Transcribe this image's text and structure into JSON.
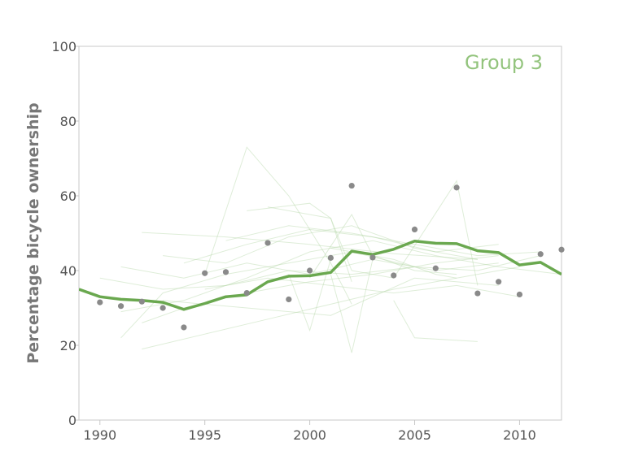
{
  "colors": {
    "trend": "#6aa84f",
    "annotation": "#93c47d",
    "background_lines": "#b6d7a8",
    "points": "#8a8a8a",
    "axis": "#c8c8c8",
    "tick_text": "#555555",
    "ylabel_text": "#777777"
  },
  "chart_data": {
    "type": "line",
    "title": "",
    "xlabel": "",
    "ylabel": "Percentage bicycle ownership",
    "annotation": "Group 3",
    "xlim": [
      1989,
      2012
    ],
    "ylim": [
      0,
      100
    ],
    "grid": false,
    "x_ticks": [
      1990,
      1995,
      2000,
      2005,
      2010
    ],
    "y_ticks": [
      0,
      20,
      40,
      60,
      80,
      100
    ],
    "series": [
      {
        "style": "line",
        "x": [
          1989,
          1990,
          1991,
          1992,
          1993,
          1994,
          1995,
          1996,
          1997,
          1998,
          1999,
          2000,
          2001,
          2002,
          2003,
          2004,
          2005,
          2006,
          2007,
          2008,
          2009,
          2010,
          2011,
          2012
        ],
        "y": [
          35,
          33,
          32.3,
          32,
          31.5,
          29.6,
          31.2,
          33,
          33.5,
          37,
          38.5,
          38.6,
          39.5,
          45.2,
          44.3,
          45.7,
          47.9,
          47.3,
          47.2,
          45.3,
          44.8,
          41.5,
          42.2,
          39
        ]
      },
      {
        "style": "points",
        "x": [
          1990,
          1991,
          1992,
          1993,
          1994,
          1995,
          1996,
          1997,
          1998,
          1999,
          2000,
          2001,
          2002,
          2003,
          2004,
          2005,
          2006,
          2007,
          2008,
          2009,
          2010,
          2011,
          2012
        ],
        "y": [
          31.5,
          30.5,
          31.7,
          30,
          24.8,
          39.3,
          39.6,
          34,
          47.4,
          32.3,
          40,
          43.4,
          62.7,
          43.5,
          38.7,
          51,
          40.6,
          62.2,
          33.9,
          37,
          33.6,
          44.4,
          45.6
        ]
      }
    ],
    "background_lines": [
      {
        "x": [
          1992,
          1996,
          2000,
          2004,
          2008
        ],
        "y": [
          50.2,
          49,
          47,
          44.5,
          43
        ]
      },
      {
        "x": [
          1991,
          1994,
          1997,
          2000,
          2003,
          2006,
          2009
        ],
        "y": [
          41,
          38,
          42,
          39,
          43,
          40,
          42
        ]
      },
      {
        "x": [
          1995,
          1997,
          1999,
          2001,
          2002
        ],
        "y": [
          39,
          73,
          60,
          42,
          31
        ]
      },
      {
        "x": [
          1993,
          1996,
          1999,
          2002,
          2005,
          2008
        ],
        "y": [
          44,
          42,
          49,
          52,
          46,
          43
        ]
      },
      {
        "x": [
          1992,
          1995,
          1998,
          2001,
          2004,
          2007,
          2010
        ],
        "y": [
          19,
          23,
          27,
          31,
          35,
          38,
          41
        ]
      },
      {
        "x": [
          1990,
          1993,
          1996,
          1999,
          2002,
          2005,
          2008,
          2011
        ],
        "y": [
          38,
          35,
          36,
          40,
          39,
          41,
          40,
          44
        ]
      },
      {
        "x": [
          1992,
          1994,
          1997,
          2000,
          2003,
          2006,
          2009
        ],
        "y": [
          26,
          30,
          34,
          37,
          39,
          42,
          44
        ]
      },
      {
        "x": [
          1997,
          2000,
          2001,
          2002
        ],
        "y": [
          56,
          58,
          54,
          40
        ]
      },
      {
        "x": [
          1998,
          2001,
          2002
        ],
        "y": [
          57,
          54,
          37
        ]
      },
      {
        "x": [
          2001,
          2002,
          2003,
          2004,
          2005,
          2006,
          2007
        ],
        "y": [
          46,
          45,
          44,
          43,
          41,
          39,
          38
        ]
      },
      {
        "x": [
          2004,
          2005,
          2008
        ],
        "y": [
          32,
          22,
          21
        ]
      },
      {
        "x": [
          1999,
          2000,
          2001
        ],
        "y": [
          39,
          24,
          43
        ]
      },
      {
        "x": [
          2002,
          2004,
          2007,
          2008
        ],
        "y": [
          40,
          38,
          64,
          36
        ]
      },
      {
        "x": [
          1993,
          1997,
          2001,
          2005,
          2009
        ],
        "y": [
          32,
          30,
          28,
          38,
          36
        ]
      },
      {
        "x": [
          1995,
          1998,
          2001,
          2004,
          2007,
          2010
        ],
        "y": [
          35,
          38,
          36,
          34,
          36,
          33
        ]
      },
      {
        "x": [
          1991,
          1994,
          1997,
          2000,
          2003,
          2006,
          2009,
          2012
        ],
        "y": [
          29,
          32,
          38,
          45,
          48,
          44,
          41,
          39
        ]
      },
      {
        "x": [
          1994,
          1997,
          2000,
          2003,
          2006,
          2009
        ],
        "y": [
          42,
          47,
          51,
          49,
          45,
          47
        ]
      },
      {
        "x": [
          1996,
          1999,
          2002,
          2005,
          2008,
          2011
        ],
        "y": [
          48,
          52,
          50,
          47,
          44,
          45
        ]
      },
      {
        "x": [
          1991,
          1993,
          1996,
          1999,
          2002,
          2005
        ],
        "y": [
          22,
          34,
          39,
          42,
          45,
          41
        ]
      },
      {
        "x": [
          2000,
          2002,
          2003,
          2005,
          2007
        ],
        "y": [
          38,
          55,
          44,
          40,
          39
        ]
      },
      {
        "x": [
          2001,
          2002,
          2003
        ],
        "y": [
          39,
          18,
          43
        ]
      }
    ]
  }
}
